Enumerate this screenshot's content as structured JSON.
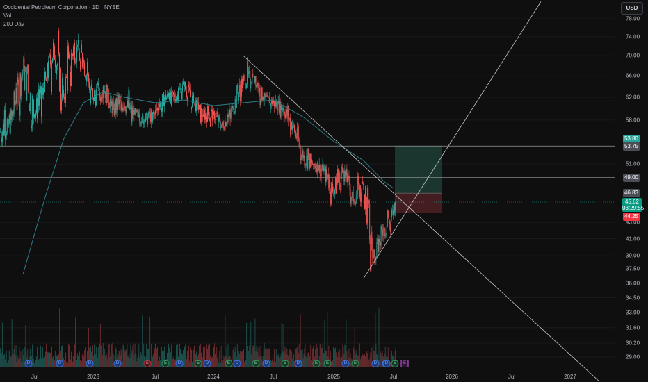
{
  "header": {
    "symbol_title": "Occidental Petroleum Corporation · 1D · NYSE",
    "indicator_vol": "Vol",
    "indicator_ma": "200 Day",
    "currency": "USD"
  },
  "colors": {
    "up": "#26a69a",
    "down": "#ef5350",
    "ma": "#2e7d85",
    "trendline": "#c8c8c8",
    "profit_zone": "#1d3a33",
    "loss_zone": "#4a1f24",
    "background": "#0f0f0f"
  },
  "price_labels": {
    "target": "53.80",
    "resistance_upper": "53.75",
    "resistance_mid": "49.00",
    "entry": "46.83",
    "current_price": "45.62",
    "countdown": "03:29:55",
    "stop": "44.25"
  },
  "events": [
    {
      "label": "D",
      "kind": "div"
    },
    {
      "label": "D",
      "kind": "div"
    },
    {
      "label": "D",
      "kind": "div"
    },
    {
      "label": "D",
      "kind": "div"
    },
    {
      "label": "E",
      "kind": "earn-neg"
    },
    {
      "label": "E",
      "kind": "earn"
    },
    {
      "label": "D",
      "kind": "div"
    },
    {
      "label": "E",
      "kind": "earn"
    },
    {
      "label": "D",
      "kind": "div"
    },
    {
      "label": "E",
      "kind": "earn"
    },
    {
      "label": "D",
      "kind": "div"
    },
    {
      "label": "E",
      "kind": "earn"
    },
    {
      "label": "D",
      "kind": "div"
    },
    {
      "label": "E",
      "kind": "earn"
    },
    {
      "label": "D",
      "kind": "div"
    },
    {
      "label": "E",
      "kind": "earn"
    },
    {
      "label": "E",
      "kind": "earn"
    },
    {
      "label": "D",
      "kind": "div"
    },
    {
      "label": "E",
      "kind": "earn"
    },
    {
      "label": "D",
      "kind": "div"
    },
    {
      "label": "D",
      "kind": "div"
    },
    {
      "label": "E",
      "kind": "earn"
    },
    {
      "label": "D",
      "kind": "div"
    },
    {
      "label": "E",
      "kind": "future"
    }
  ],
  "chart_data": {
    "type": "candlestick",
    "title": "Occidental Petroleum Corporation · 1D · NYSE",
    "xlabel": "",
    "ylabel": "",
    "y_scale": "log",
    "ylim": [
      28.0,
      80.0
    ],
    "y_ticks": [
      "78.00",
      "74.00",
      "70.00",
      "66.00",
      "62.00",
      "58.00",
      "51.00",
      "43.00",
      "41.00",
      "39.00",
      "37.50",
      "36.00",
      "34.50",
      "33.00",
      "31.60",
      "30.20",
      "29.00"
    ],
    "x_ticks": [
      "Jul",
      "2023",
      "Jul",
      "2024",
      "Jul",
      "2025",
      "Jul",
      "2026",
      "Jul",
      "2027"
    ],
    "x_range": [
      "2022-04",
      "2027-04"
    ],
    "series": [
      {
        "name": "",
        "kind": "ohlc-monthly-summary",
        "points": [
          {
            "x": "2022-04",
            "open": 56.0,
            "high": 62.0,
            "low": 52.0,
            "close": 58.0
          },
          {
            "x": "2022-05",
            "open": 58.0,
            "high": 70.0,
            "low": 56.0,
            "close": 67.0
          },
          {
            "x": "2022-06",
            "open": 67.0,
            "high": 73.0,
            "low": 56.0,
            "close": 59.0
          },
          {
            "x": "2022-07",
            "open": 59.0,
            "high": 66.0,
            "low": 55.0,
            "close": 63.0
          },
          {
            "x": "2022-08",
            "open": 63.0,
            "high": 76.0,
            "low": 62.0,
            "close": 72.0
          },
          {
            "x": "2022-09",
            "open": 72.0,
            "high": 76.0,
            "low": 59.0,
            "close": 62.0
          },
          {
            "x": "2022-10",
            "open": 62.0,
            "high": 75.0,
            "low": 60.0,
            "close": 72.0
          },
          {
            "x": "2022-11",
            "open": 72.0,
            "high": 76.0,
            "low": 63.0,
            "close": 69.0
          },
          {
            "x": "2022-12",
            "open": 69.0,
            "high": 70.0,
            "low": 59.0,
            "close": 62.0
          },
          {
            "x": "2023-01",
            "open": 62.0,
            "high": 67.0,
            "low": 58.0,
            "close": 64.0
          },
          {
            "x": "2023-02",
            "open": 64.0,
            "high": 65.0,
            "low": 57.0,
            "close": 60.0
          },
          {
            "x": "2023-03",
            "open": 60.0,
            "high": 63.0,
            "low": 55.0,
            "close": 61.0
          },
          {
            "x": "2023-04",
            "open": 61.0,
            "high": 64.0,
            "low": 57.0,
            "close": 59.0
          },
          {
            "x": "2023-05",
            "open": 59.0,
            "high": 60.0,
            "low": 55.0,
            "close": 58.0
          },
          {
            "x": "2023-06",
            "open": 58.0,
            "high": 60.0,
            "low": 55.0,
            "close": 59.0
          },
          {
            "x": "2023-07",
            "open": 59.0,
            "high": 63.0,
            "low": 57.0,
            "close": 62.0
          },
          {
            "x": "2023-08",
            "open": 62.0,
            "high": 64.0,
            "low": 59.0,
            "close": 62.0
          },
          {
            "x": "2023-09",
            "open": 62.0,
            "high": 67.0,
            "low": 61.0,
            "close": 64.0
          },
          {
            "x": "2023-10",
            "open": 64.0,
            "high": 65.0,
            "low": 58.0,
            "close": 61.0
          },
          {
            "x": "2023-11",
            "open": 61.0,
            "high": 62.0,
            "low": 57.0,
            "close": 59.0
          },
          {
            "x": "2023-12",
            "open": 59.0,
            "high": 61.0,
            "low": 55.0,
            "close": 59.0
          },
          {
            "x": "2024-01",
            "open": 59.0,
            "high": 60.0,
            "low": 56.0,
            "close": 57.0
          },
          {
            "x": "2024-02",
            "open": 57.0,
            "high": 61.0,
            "low": 56.0,
            "close": 60.0
          },
          {
            "x": "2024-03",
            "open": 60.0,
            "high": 67.0,
            "low": 59.0,
            "close": 65.0
          },
          {
            "x": "2024-04",
            "open": 65.0,
            "high": 70.0,
            "low": 63.0,
            "close": 66.0
          },
          {
            "x": "2024-05",
            "open": 66.0,
            "high": 66.0,
            "low": 60.0,
            "close": 62.0
          },
          {
            "x": "2024-06",
            "open": 62.0,
            "high": 63.0,
            "low": 59.0,
            "close": 61.0
          },
          {
            "x": "2024-07",
            "open": 61.0,
            "high": 63.0,
            "low": 58.0,
            "close": 60.0
          },
          {
            "x": "2024-08",
            "open": 60.0,
            "high": 61.0,
            "low": 55.0,
            "close": 57.0
          },
          {
            "x": "2024-09",
            "open": 57.0,
            "high": 58.0,
            "low": 51.0,
            "close": 52.0
          },
          {
            "x": "2024-10",
            "open": 52.0,
            "high": 56.0,
            "low": 50.0,
            "close": 51.0
          },
          {
            "x": "2024-11",
            "open": 51.0,
            "high": 52.0,
            "low": 48.0,
            "close": 50.0
          },
          {
            "x": "2024-12",
            "open": 50.0,
            "high": 51.0,
            "low": 45.0,
            "close": 47.0
          },
          {
            "x": "2025-01",
            "open": 47.0,
            "high": 53.0,
            "low": 46.0,
            "close": 50.0
          },
          {
            "x": "2025-02",
            "open": 50.0,
            "high": 51.0,
            "low": 45.0,
            "close": 46.0
          },
          {
            "x": "2025-03",
            "open": 46.0,
            "high": 50.0,
            "low": 45.0,
            "close": 48.0
          },
          {
            "x": "2025-04",
            "open": 48.0,
            "high": 48.0,
            "low": 34.8,
            "close": 39.0
          },
          {
            "x": "2025-05",
            "open": 39.0,
            "high": 43.0,
            "low": 38.0,
            "close": 42.0
          },
          {
            "x": "2025-06",
            "open": 42.0,
            "high": 47.0,
            "low": 41.0,
            "close": 44.0
          },
          {
            "x": "2025-07",
            "open": 44.0,
            "high": 46.0,
            "low": 43.5,
            "close": 45.62
          }
        ]
      },
      {
        "name": "200 Day",
        "kind": "line",
        "points": [
          {
            "x": "2022-06",
            "y": 37.0
          },
          {
            "x": "2022-08",
            "y": 46.0
          },
          {
            "x": "2022-10",
            "y": 55.0
          },
          {
            "x": "2022-12",
            "y": 61.0
          },
          {
            "x": "2023-02",
            "y": 63.0
          },
          {
            "x": "2023-04",
            "y": 62.0
          },
          {
            "x": "2023-07",
            "y": 61.0
          },
          {
            "x": "2023-10",
            "y": 61.5
          },
          {
            "x": "2024-01",
            "y": 60.5
          },
          {
            "x": "2024-04",
            "y": 61.0
          },
          {
            "x": "2024-07",
            "y": 61.5
          },
          {
            "x": "2024-10",
            "y": 58.5
          },
          {
            "x": "2025-01",
            "y": 54.5
          },
          {
            "x": "2025-04",
            "y": 51.5
          },
          {
            "x": "2025-06",
            "y": 48.5
          },
          {
            "x": "2025-07",
            "y": 47.5
          }
        ]
      }
    ],
    "annotations": {
      "horizontal_lines": [
        53.75,
        49.0,
        46.83
      ],
      "descending_trendline": [
        {
          "x": "2024-04",
          "y": 70.0
        },
        {
          "x": "2027-04",
          "y": 27.0
        }
      ],
      "ascending_trendline": [
        {
          "x": "2025-04",
          "y": 36.5
        },
        {
          "x": "2026-10",
          "y": 82.0
        }
      ],
      "long_position": {
        "x_start": "2025-07",
        "x_end": "2025-12",
        "entry": 46.83,
        "target": 53.8,
        "stop": 44.25
      }
    }
  }
}
